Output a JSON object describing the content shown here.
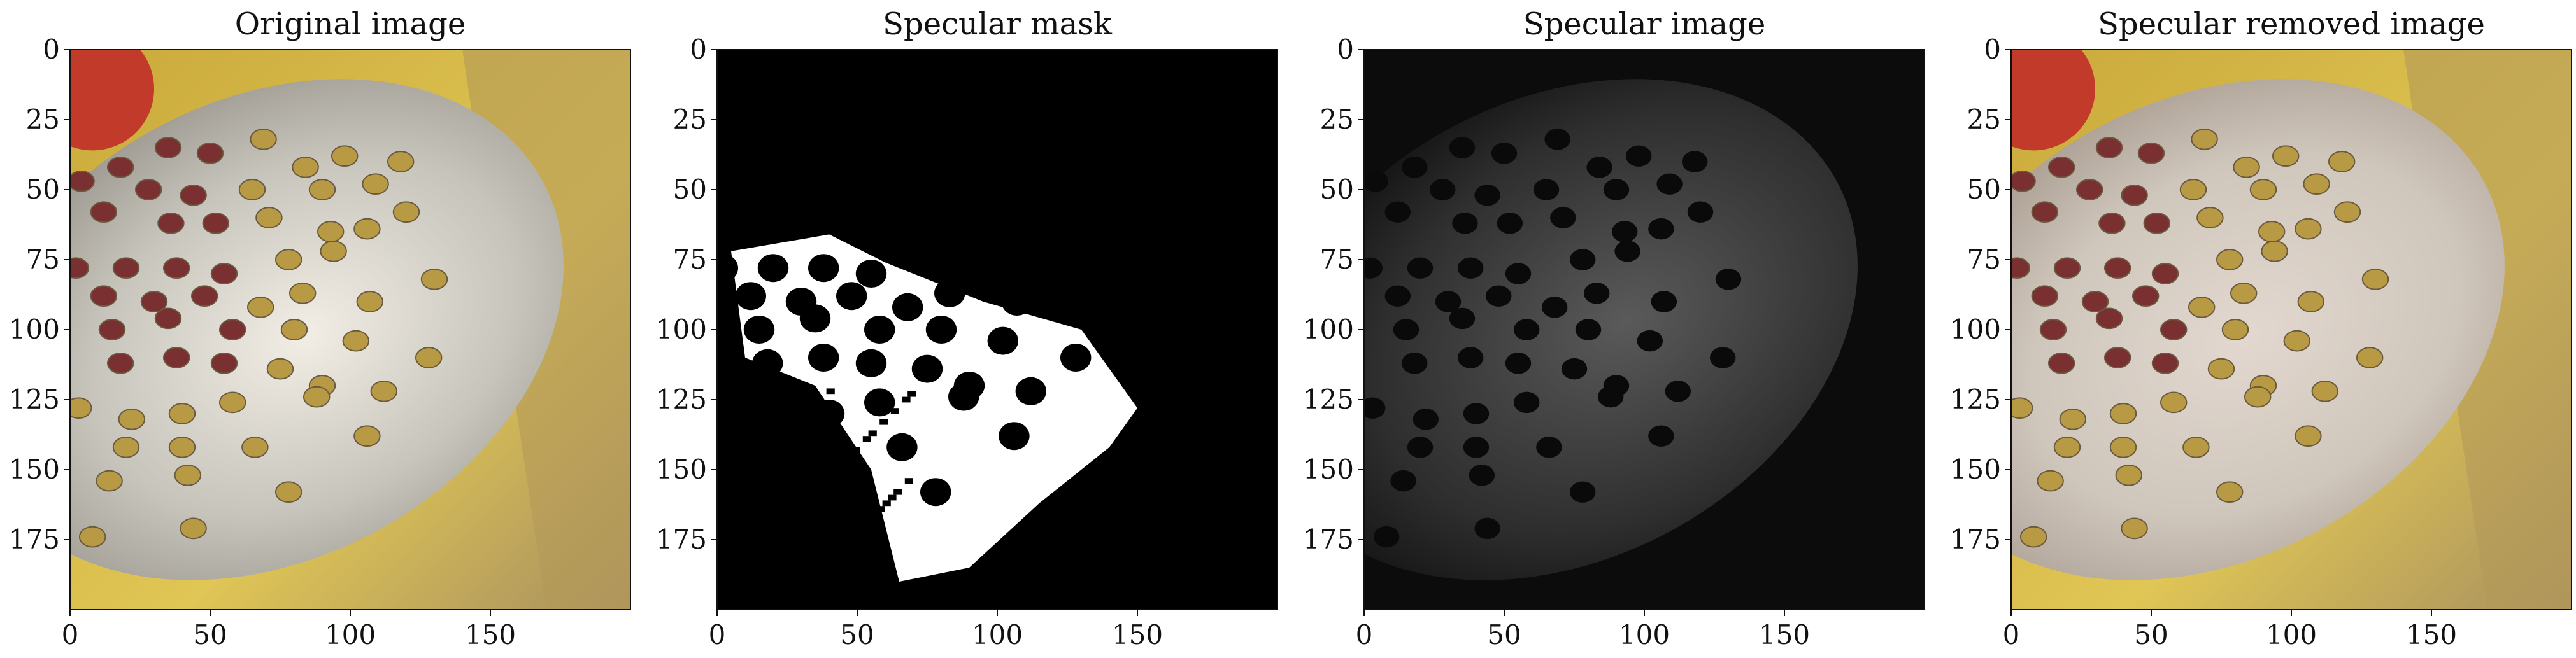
{
  "panels": [
    {
      "title": "Original image",
      "kind": "original",
      "y_ticks": [
        "0",
        "25",
        "50",
        "75",
        "100",
        "125",
        "150",
        "175"
      ],
      "x_ticks": [
        "0",
        "50",
        "100",
        "150"
      ]
    },
    {
      "title": "Specular mask",
      "kind": "mask",
      "y_ticks": [
        "0",
        "25",
        "50",
        "75",
        "100",
        "125",
        "150",
        "175"
      ],
      "x_ticks": [
        "0",
        "50",
        "100",
        "150"
      ]
    },
    {
      "title": "Specular image",
      "kind": "specular",
      "y_ticks": [
        "0",
        "25",
        "50",
        "75",
        "100",
        "125",
        "150",
        "175"
      ],
      "x_ticks": [
        "0",
        "50",
        "100",
        "150"
      ]
    },
    {
      "title": "Specular removed image",
      "kind": "removed",
      "y_ticks": [
        "0",
        "25",
        "50",
        "75",
        "100",
        "125",
        "150",
        "175"
      ],
      "x_ticks": [
        "0",
        "50",
        "100",
        "150"
      ]
    }
  ],
  "axes": {
    "x_range": [
      0,
      200
    ],
    "y_range": [
      0,
      200
    ],
    "y_inverted": true
  },
  "colors": {
    "box_yellow": "#d9b834",
    "box_red": "#c23a2a",
    "plate": "#c8c4b8",
    "hole_dark": "#5a2a2a",
    "mask_white": "#ffffff",
    "mask_black": "#000000"
  }
}
